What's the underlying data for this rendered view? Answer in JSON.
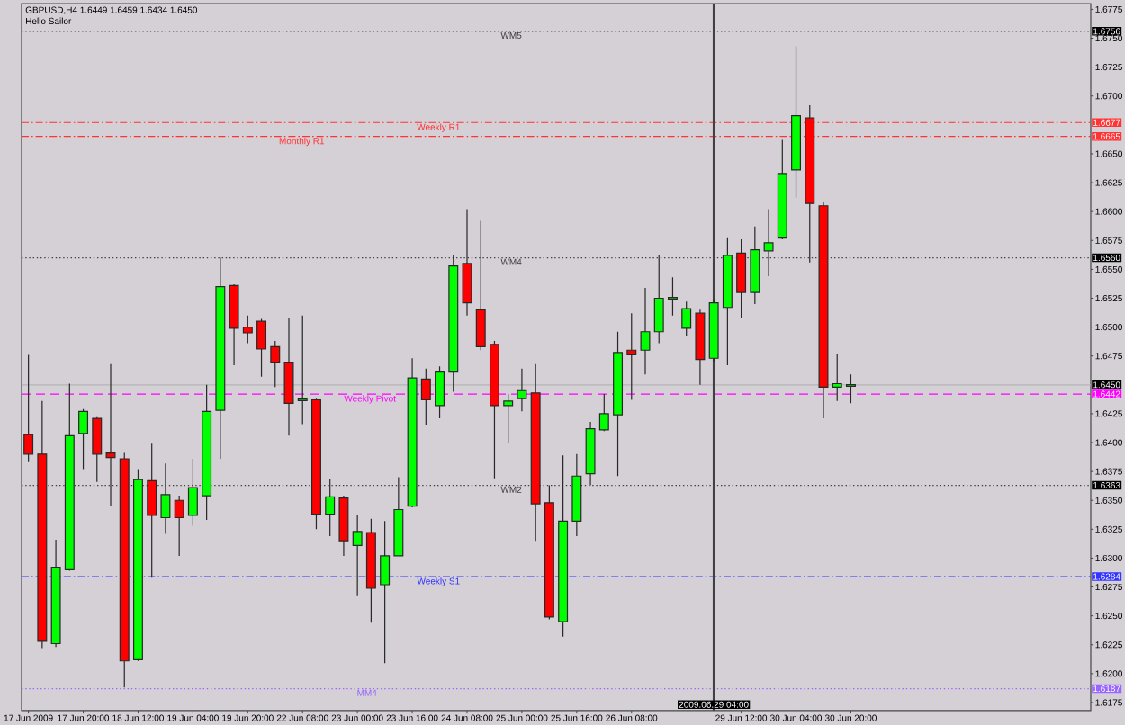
{
  "chart_data": {
    "type": "candlestick",
    "title": "GBPUSD,H4 1.6449 1.6459 1.6434 1.6450",
    "subtitle": "Hello Sailor",
    "categories": [
      "17 Jun 2009",
      null,
      null,
      null,
      "17 Jun 20:00",
      null,
      null,
      null,
      "18 Jun 12:00",
      null,
      null,
      null,
      "19 Jun 04:00",
      null,
      null,
      null,
      "19 Jun 20:00",
      null,
      null,
      null,
      "22 Jun 08:00",
      null,
      null,
      null,
      "23 Jun 00:00",
      null,
      null,
      null,
      "23 Jun 16:00",
      null,
      null,
      null,
      "24 Jun 08:00",
      null,
      null,
      null,
      "25 Jun 00:00",
      null,
      null,
      null,
      "25 Jun 16:00",
      null,
      null,
      null,
      "26 Jun 08:00",
      null,
      null,
      null,
      null,
      null,
      "2009.06.29 04:00",
      null,
      "29 Jun 12:00",
      null,
      null,
      null,
      "30 Jun 04:00",
      null,
      null,
      null,
      "30 Jun 20:00",
      null,
      null,
      null,
      null,
      null,
      null,
      null,
      null,
      null,
      null,
      null,
      null,
      null,
      null,
      null,
      null,
      null
    ],
    "ohlc": [
      [
        1.6407,
        1.6476,
        1.6383,
        1.639
      ],
      [
        1.639,
        1.6436,
        1.6222,
        1.6228
      ],
      [
        1.6226,
        1.6316,
        1.6223,
        1.6292
      ],
      [
        1.629,
        1.6451,
        1.6289,
        1.6406
      ],
      [
        1.6408,
        1.6429,
        1.6377,
        1.6427
      ],
      [
        1.6421,
        1.6422,
        1.6366,
        1.639
      ],
      [
        1.6391,
        1.6468,
        1.6345,
        1.6387
      ],
      [
        1.6386,
        1.6391,
        1.6188,
        1.6211
      ],
      [
        1.6212,
        1.6377,
        1.6211,
        1.6368
      ],
      [
        1.6367,
        1.6399,
        1.6283,
        1.6337
      ],
      [
        1.6335,
        1.6382,
        1.6321,
        1.6355
      ],
      [
        1.635,
        1.6354,
        1.6302,
        1.6335
      ],
      [
        1.6337,
        1.6386,
        1.6328,
        1.6361
      ],
      [
        1.6354,
        1.645,
        1.6333,
        1.6427
      ],
      [
        1.6428,
        1.656,
        1.6386,
        1.6535
      ],
      [
        1.6536,
        1.6537,
        1.6467,
        1.6499
      ],
      [
        1.65,
        1.651,
        1.6486,
        1.6495
      ],
      [
        1.6505,
        1.6507,
        1.6457,
        1.6481
      ],
      [
        1.6483,
        1.6488,
        1.6448,
        1.6469
      ],
      [
        1.6469,
        1.6508,
        1.6406,
        1.6434
      ],
      [
        1.6437,
        1.651,
        1.6416,
        1.6437
      ],
      [
        1.6437,
        1.6438,
        1.6325,
        1.6338
      ],
      [
        1.6338,
        1.6368,
        1.6319,
        1.6353
      ],
      [
        1.6352,
        1.6354,
        1.6302,
        1.6315
      ],
      [
        1.6311,
        1.6337,
        1.6267,
        1.6323
      ],
      [
        1.6322,
        1.6334,
        1.6244,
        1.6274
      ],
      [
        1.6277,
        1.6332,
        1.6209,
        1.6302
      ],
      [
        1.6302,
        1.637,
        1.6302,
        1.6342
      ],
      [
        1.6345,
        1.6473,
        1.6344,
        1.6456
      ],
      [
        1.6455,
        1.6464,
        1.6415,
        1.6437
      ],
      [
        1.6432,
        1.6466,
        1.6421,
        1.6461
      ],
      [
        1.6461,
        1.6562,
        1.6444,
        1.6553
      ],
      [
        1.6555,
        1.6602,
        1.651,
        1.6521
      ],
      [
        1.6515,
        1.6592,
        1.648,
        1.6483
      ],
      [
        1.6485,
        1.6488,
        1.6369,
        1.6432
      ],
      [
        1.6432,
        1.6442,
        1.64,
        1.6436
      ],
      [
        1.6438,
        1.6464,
        1.6427,
        1.6445
      ],
      [
        1.6443,
        1.6468,
        1.6315,
        1.6347
      ],
      [
        1.6348,
        1.6363,
        1.6247,
        1.6249
      ],
      [
        1.6245,
        1.6389,
        1.6232,
        1.6332
      ],
      [
        1.6332,
        1.639,
        1.6319,
        1.6371
      ],
      [
        1.6373,
        1.6418,
        1.6363,
        1.6412
      ],
      [
        1.6411,
        1.6442,
        1.641,
        1.6425
      ],
      [
        1.6424,
        1.6496,
        1.6371,
        1.6478
      ],
      [
        1.648,
        1.6512,
        1.6437,
        1.6476
      ],
      [
        1.648,
        1.6534,
        1.6459,
        1.6496
      ],
      [
        1.6496,
        1.6562,
        1.6486,
        1.6525
      ],
      [
        1.6525,
        1.6543,
        1.651,
        1.6525
      ],
      [
        1.6499,
        1.6522,
        1.6492,
        1.6516
      ],
      [
        1.6512,
        1.6515,
        1.645,
        1.6472
      ],
      [
        1.6473,
        1.6524,
        1.647,
        1.6521
      ],
      [
        1.6517,
        1.6577,
        1.6467,
        1.6562
      ],
      [
        1.6564,
        1.6576,
        1.6508,
        1.653
      ],
      [
        1.653,
        1.6587,
        1.652,
        1.6567
      ],
      [
        1.6566,
        1.6602,
        1.6544,
        1.6573
      ],
      [
        1.6577,
        1.6662,
        1.6576,
        1.6633
      ],
      [
        1.6636,
        1.6743,
        1.6612,
        1.6683
      ],
      [
        1.6681,
        1.6692,
        1.6556,
        1.6607
      ],
      [
        1.6605,
        1.6608,
        1.6421,
        1.6448
      ],
      [
        1.6448,
        1.6477,
        1.6436,
        1.6451
      ],
      [
        1.6449,
        1.6459,
        1.6434,
        1.645
      ],
      null,
      null,
      null,
      null,
      null,
      null,
      null,
      null,
      null,
      null,
      null,
      null,
      null,
      null,
      null,
      null,
      null
    ],
    "colors": [
      "#ff0000",
      "#ff0000",
      "#00ff00",
      "#00ff00",
      "#00ff00",
      "#ff0000",
      "#ff0000",
      "#ff0000",
      "#00ff00",
      "#ff0000",
      "#00ff00",
      "#ff0000",
      "#00ff00",
      "#00ff00",
      "#00ff00",
      "#ff0000",
      "#ff0000",
      "#ff0000",
      "#ff0000",
      "#ff0000",
      "#00ff00",
      "#ff0000",
      "#00ff00",
      "#ff0000",
      "#00ff00",
      "#ff0000",
      "#00ff00",
      "#00ff00",
      "#00ff00",
      "#ff0000",
      "#00ff00",
      "#00ff00",
      "#ff0000",
      "#ff0000",
      "#ff0000",
      "#00ff00",
      "#00ff00",
      "#ff0000",
      "#ff0000",
      "#00ff00",
      "#00ff00",
      "#00ff00",
      "#00ff00",
      "#00ff00",
      "#ff0000",
      "#00ff00",
      "#00ff00",
      "#00ff00",
      "#00ff00",
      "#ff0000",
      "#00ff00",
      "#00ff00",
      "#ff0000",
      "#00ff00",
      "#00ff00",
      "#00ff00",
      "#00ff00",
      "#ff0000",
      "#ff0000",
      "#00ff00",
      "#00ff00",
      null,
      null,
      null,
      null,
      null,
      null,
      null,
      null,
      null,
      null,
      null,
      null,
      null,
      null,
      null,
      null,
      null
    ],
    "ylim": [
      1.6168,
      1.678
    ],
    "yticks": [
      {
        "value": 1.6175,
        "label": "1.6175"
      },
      {
        "value": 1.62,
        "label": "1.6200"
      },
      {
        "value": 1.6225,
        "label": "1.6225"
      },
      {
        "value": 1.625,
        "label": "1.6250"
      },
      {
        "value": 1.6275,
        "label": "1.6275"
      },
      {
        "value": 1.63,
        "label": "1.6300"
      },
      {
        "value": 1.6325,
        "label": "1.6325"
      },
      {
        "value": 1.635,
        "label": "1.6350"
      },
      {
        "value": 1.6375,
        "label": "1.6375"
      },
      {
        "value": 1.64,
        "label": "1.6400"
      },
      {
        "value": 1.6425,
        "label": "1.6425"
      },
      {
        "value": 1.6475,
        "label": "1.6475"
      },
      {
        "value": 1.65,
        "label": "1.6500"
      },
      {
        "value": 1.6525,
        "label": "1.6525"
      },
      {
        "value": 1.655,
        "label": "1.6550"
      },
      {
        "value": 1.6575,
        "label": "1.6575"
      },
      {
        "value": 1.66,
        "label": "1.6600"
      },
      {
        "value": 1.6625,
        "label": "1.6625"
      },
      {
        "value": 1.665,
        "label": "1.6650"
      },
      {
        "value": 1.67,
        "label": "1.6700"
      },
      {
        "value": 1.6725,
        "label": "1.6725"
      },
      {
        "value": 1.675,
        "label": "1.6750"
      },
      {
        "value": 1.6775,
        "label": "1.6775"
      }
    ],
    "ref_lines": [
      {
        "axis": "y",
        "value": 1.6756,
        "label": "WM5",
        "color": "#404040",
        "line_style": "dotted"
      },
      {
        "axis": "y",
        "value": 1.6677,
        "label": "Weekly R1",
        "color": "#ff3333",
        "line_style": "dashdot"
      },
      {
        "axis": "y",
        "value": 1.6665,
        "label": "Monthly R1",
        "color": "#ff3333",
        "line_style": "dashdot"
      },
      {
        "axis": "y",
        "value": 1.656,
        "label": "WM4",
        "color": "#404040",
        "line_style": "dotted"
      },
      {
        "axis": "y",
        "value": 1.645,
        "color": "#b4b4b4",
        "line_style": "solid"
      },
      {
        "axis": "y",
        "value": 1.6442,
        "label": "Weekly Pivot",
        "color": "#ff00ff",
        "line_style": "dashed"
      },
      {
        "axis": "y",
        "value": 1.6363,
        "label": "WM2",
        "color": "#404040",
        "line_style": "dotted"
      },
      {
        "axis": "y",
        "value": 1.6284,
        "label": "Weekly S1",
        "color": "#3333ff",
        "line_style": "dashdot"
      },
      {
        "axis": "y",
        "value": 1.6187,
        "label": "MM4",
        "color": "#9966ff",
        "line_style": "dotted"
      },
      {
        "axis": "x",
        "value": "2009.06.29 04:00",
        "color": "#404040",
        "line_style": "solid"
      }
    ],
    "annotations": [
      "1.6756",
      "1.6677",
      "1.6665",
      "1.6560",
      "1.6450",
      "1.6442",
      "1.6363",
      "1.6284",
      "1.6187"
    ]
  }
}
